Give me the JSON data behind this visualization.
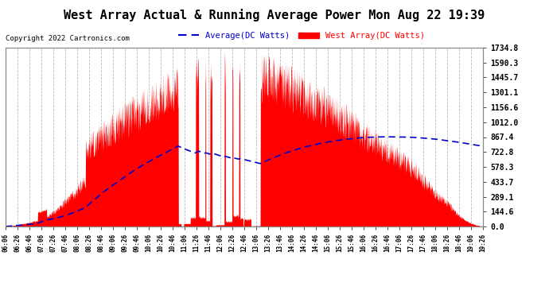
{
  "title": "West Array Actual & Running Average Power Mon Aug 22 19:39",
  "copyright": "Copyright 2022 Cartronics.com",
  "legend_avg": "Average(DC Watts)",
  "legend_west": "West Array(DC Watts)",
  "ylabel_values": [
    0.0,
    144.6,
    289.1,
    433.7,
    578.3,
    722.8,
    867.4,
    1012.0,
    1156.6,
    1301.1,
    1445.7,
    1590.3,
    1734.8
  ],
  "ymax": 1734.8,
  "ymin": 0.0,
  "bg_color": "#ffffff",
  "plot_bg_color": "#ffffff",
  "grid_color": "#aaaaaa",
  "fill_color": "#ff0000",
  "avg_line_color": "#0000cc",
  "time_labels": [
    "06:06",
    "06:26",
    "06:46",
    "07:06",
    "07:26",
    "07:46",
    "08:06",
    "08:26",
    "08:46",
    "09:06",
    "09:26",
    "09:46",
    "10:06",
    "10:26",
    "10:46",
    "11:06",
    "11:26",
    "11:46",
    "12:06",
    "12:26",
    "12:46",
    "13:06",
    "13:26",
    "13:46",
    "14:06",
    "14:26",
    "14:46",
    "15:06",
    "15:26",
    "15:46",
    "16:06",
    "16:26",
    "16:46",
    "17:06",
    "17:26",
    "17:46",
    "18:06",
    "18:26",
    "18:46",
    "19:06",
    "19:26"
  ]
}
